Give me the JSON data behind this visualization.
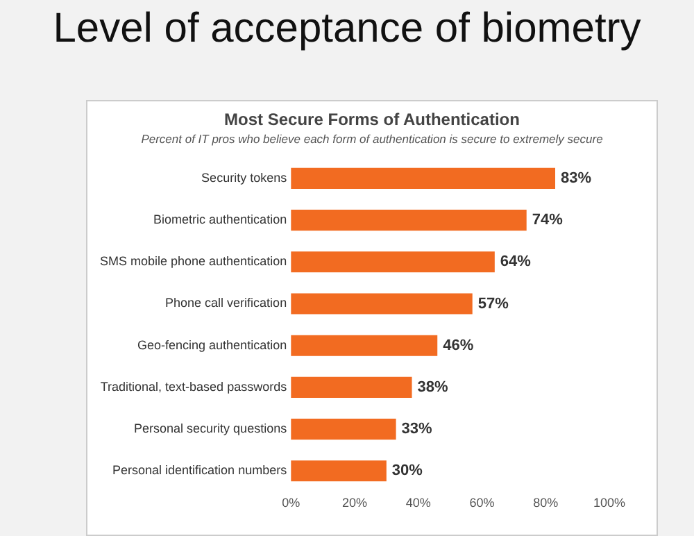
{
  "chart_data": {
    "type": "bar",
    "orientation": "horizontal",
    "title": "Most Secure Forms of Authentication",
    "subtitle": "Percent of IT pros who believe each form of authentication is secure to extremely secure",
    "annotations": [
      "Level of acceptance of biometry"
    ],
    "categories": [
      "Security tokens",
      "Biometric authentication",
      "SMS mobile phone authentication",
      "Phone call verification",
      "Geo-fencing authentication",
      "Traditional, text-based passwords",
      "Personal security questions",
      "Personal identification numbers"
    ],
    "values": [
      83,
      74,
      64,
      57,
      46,
      38,
      33,
      30
    ],
    "value_labels": [
      "83%",
      "74%",
      "64%",
      "57%",
      "46%",
      "38%",
      "33%",
      "30%"
    ],
    "color": "#f26b21",
    "xlim": [
      0,
      100
    ],
    "xticks": [
      {
        "value": 0,
        "label": "0%"
      },
      {
        "value": 20,
        "label": "20%"
      },
      {
        "value": 40,
        "label": "40%"
      },
      {
        "value": 60,
        "label": "60%"
      },
      {
        "value": 80,
        "label": "80%"
      },
      {
        "value": 100,
        "label": "100%"
      }
    ],
    "grid": false,
    "legend": false
  }
}
